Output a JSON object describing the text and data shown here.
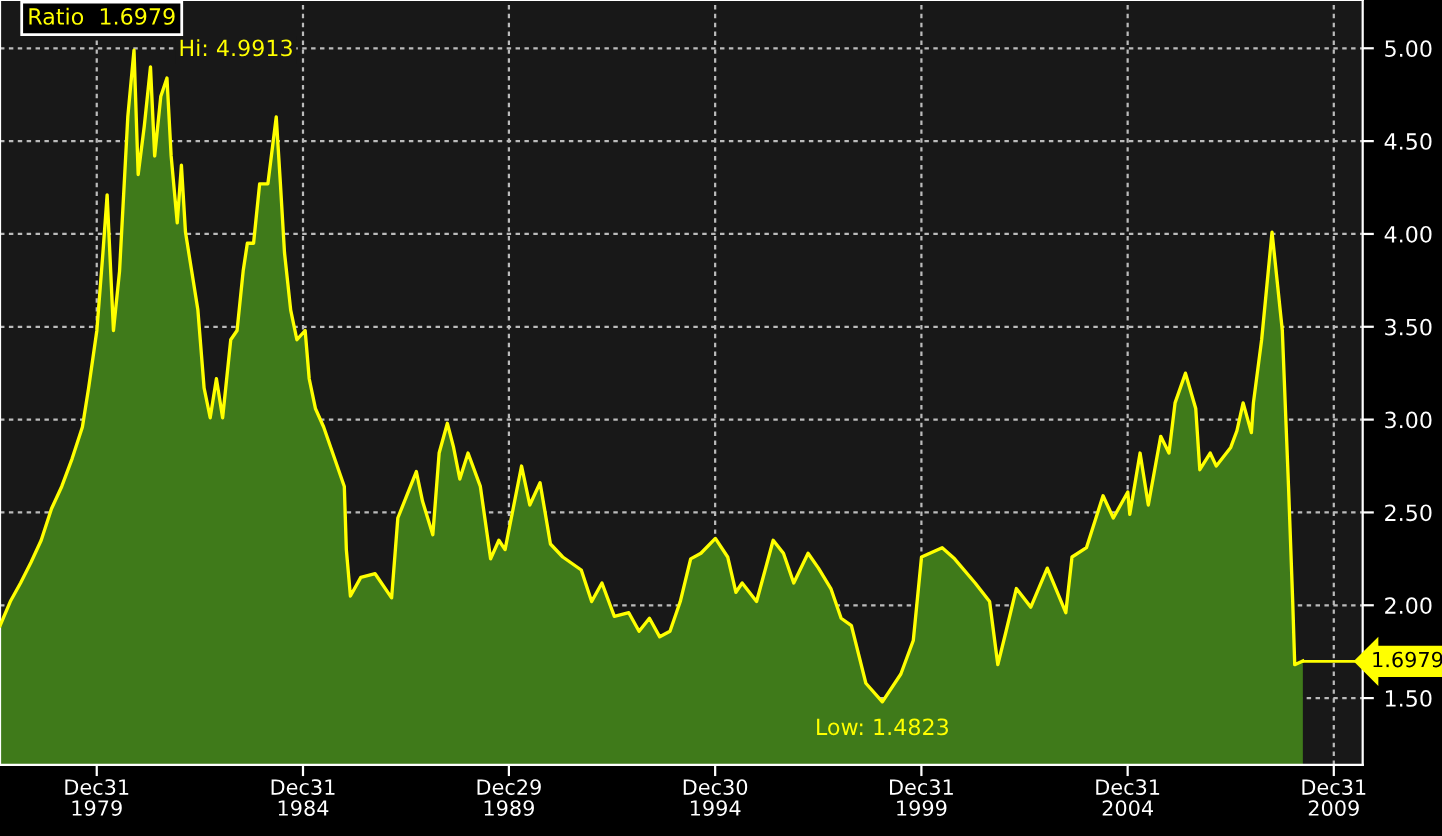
{
  "chart_data": {
    "type": "area",
    "x": [
      "1977-08-26",
      "1977-11-25",
      "1978-02-24",
      "1978-05-27",
      "1978-08-26",
      "1978-11-25",
      "1979-02-24",
      "1979-05-27",
      "1979-08-26",
      "1979-10-20",
      "1980-01-01",
      "1980-02-24",
      "1980-04-01",
      "1980-05-27",
      "1980-07-20",
      "1980-10-01",
      "1980-11-25",
      "1981-01-01",
      "1981-02-24",
      "1981-04-20",
      "1981-05-27",
      "1981-07-20",
      "1981-09-13",
      "1981-10-20",
      "1981-12-13",
      "1982-01-19",
      "1982-02-24",
      "1982-04-20",
      "1982-06-14",
      "1982-08-08",
      "1982-10-01",
      "1982-11-25",
      "1983-01-19",
      "1983-04-01",
      "1983-05-27",
      "1983-07-20",
      "1983-08-26",
      "1983-10-20",
      "1983-12-13",
      "1984-02-24",
      "1984-05-08",
      "1984-06-14",
      "1984-07-20",
      "1984-09-13",
      "1984-11-07",
      "1985-01-19",
      "1985-02-24",
      "1985-04-20",
      "1985-07-02",
      "1986-01-01",
      "1986-01-19",
      "1986-02-24",
      "1986-05-27",
      "1986-10-01",
      "1987-02-24",
      "1987-04-20",
      "1987-10-01",
      "1987-11-25",
      "1988-02-24",
      "1988-04-20",
      "1988-07-02",
      "1988-08-26",
      "1988-10-20",
      "1989-01-01",
      "1989-04-20",
      "1989-07-20",
      "1989-10-01",
      "1989-11-25",
      "1990-04-20",
      "1990-07-02",
      "1990-10-01",
      "1991-01-01",
      "1991-04-20",
      "1991-10-01",
      "1992-01-01",
      "1992-04-01",
      "1992-07-20",
      "1992-11-25",
      "1993-02-24",
      "1993-05-27",
      "1993-08-26",
      "1993-11-25",
      "1994-02-24",
      "1994-05-27",
      "1994-08-26",
      "1995-01-01",
      "1995-04-20",
      "1995-07-02",
      "1995-08-26",
      "1996-01-01",
      "1996-05-27",
      "1996-08-26",
      "1996-11-25",
      "1997-04-01",
      "1997-07-02",
      "1997-10-20",
      "1998-01-19",
      "1998-04-20",
      "1998-08-26",
      "1999-01-19",
      "1999-07-02",
      "1999-10-20",
      "2000-01-01",
      "2000-07-02",
      "2000-10-20",
      "2001-04-20",
      "2001-08-26",
      "2001-11-07",
      "2002-01-19",
      "2002-04-20",
      "2002-08-26",
      "2003-01-19",
      "2003-07-02",
      "2003-08-26",
      "2004-01-01",
      "2004-05-27",
      "2004-08-26",
      "2005-01-01",
      "2005-01-19",
      "2005-04-20",
      "2005-07-02",
      "2005-10-20",
      "2006-01-01",
      "2006-02-24",
      "2006-05-27",
      "2006-08-26",
      "2006-10-01",
      "2007-01-01",
      "2007-02-24",
      "2007-07-02",
      "2007-08-26",
      "2007-10-20",
      "2008-01-01",
      "2008-01-19",
      "2008-04-01",
      "2008-07-02",
      "2008-10-01",
      "2008-11-25",
      "2009-01-01",
      "2009-01-19",
      "2009-04-01"
    ],
    "series": [
      {
        "color": "#ffff00",
        "values": [
          1.89,
          2.02,
          2.12,
          2.23,
          2.35,
          2.52,
          2.64,
          2.79,
          2.96,
          3.17,
          3.48,
          3.9,
          4.21,
          3.48,
          3.8,
          4.63,
          4.99,
          4.32,
          4.58,
          4.9,
          4.42,
          4.74,
          4.84,
          4.42,
          4.06,
          4.37,
          4.01,
          3.8,
          3.59,
          3.17,
          3.01,
          3.22,
          3.01,
          3.43,
          3.48,
          3.8,
          3.95,
          3.95,
          4.27,
          4.27,
          4.63,
          4.27,
          3.9,
          3.59,
          3.43,
          3.48,
          3.22,
          3.06,
          2.96,
          2.64,
          2.3,
          2.05,
          2.15,
          2.17,
          2.04,
          2.47,
          2.72,
          2.56,
          2.38,
          2.82,
          2.98,
          2.85,
          2.68,
          2.82,
          2.64,
          2.25,
          2.35,
          2.3,
          2.75,
          2.54,
          2.66,
          2.33,
          2.26,
          2.19,
          2.02,
          2.12,
          1.94,
          1.96,
          1.86,
          1.93,
          1.83,
          1.86,
          2.02,
          2.25,
          2.28,
          2.36,
          2.26,
          2.07,
          2.12,
          2.02,
          2.35,
          2.28,
          2.12,
          2.28,
          2.2,
          2.09,
          1.93,
          1.89,
          1.58,
          1.48,
          1.63,
          1.81,
          2.26,
          2.31,
          2.25,
          2.12,
          2.02,
          1.68,
          1.86,
          2.09,
          1.99,
          2.2,
          1.96,
          2.26,
          2.31,
          2.59,
          2.47,
          2.61,
          2.49,
          2.82,
          2.54,
          2.91,
          2.82,
          3.09,
          3.25,
          3.06,
          2.73,
          2.82,
          2.75,
          2.85,
          2.94,
          3.09,
          2.93,
          3.09,
          3.43,
          4.01,
          3.48,
          2.64,
          2.02,
          1.68,
          1.7
        ]
      }
    ],
    "xlim": [
      "1977-08-26",
      "2010-09-13"
    ],
    "ylim": [
      1.14,
      5.26
    ],
    "xticks": [
      {
        "value": "1979-12-31",
        "label": "Dec31\n1979"
      },
      {
        "value": "1984-12-31",
        "label": "Dec31\n1984"
      },
      {
        "value": "1989-12-29",
        "label": "Dec29\n1989"
      },
      {
        "value": "1994-12-30",
        "label": "Dec30\n1994"
      },
      {
        "value": "1999-12-31",
        "label": "Dec31\n1999"
      },
      {
        "value": "2004-12-31",
        "label": "Dec31\n2004"
      },
      {
        "value": "2009-12-31",
        "label": "Dec31\n2009"
      }
    ],
    "yticks": [
      {
        "value": 1.5,
        "label": "1.50"
      },
      {
        "value": 2.0,
        "label": "2.00"
      },
      {
        "value": 2.5,
        "label": "2.50"
      },
      {
        "value": 3.0,
        "label": "3.00"
      },
      {
        "value": 3.5,
        "label": "3.50"
      },
      {
        "value": 4.0,
        "label": "4.00"
      },
      {
        "value": 4.5,
        "label": "4.50"
      },
      {
        "value": 5.0,
        "label": "5.00"
      }
    ],
    "grid": true,
    "ref_lines": [
      {
        "axis": "y",
        "value": 1.6979,
        "label": "1.6979",
        "color": "#ffff00"
      }
    ],
    "annotations": [
      "Ratio  1.6979",
      {
        "text": "Hi: 4.9913",
        "x": "1980-11-25",
        "y": 4.9913
      },
      {
        "text": "Low: 1.4823",
        "x": "1999-01-19",
        "y": 1.4823
      }
    ]
  }
}
